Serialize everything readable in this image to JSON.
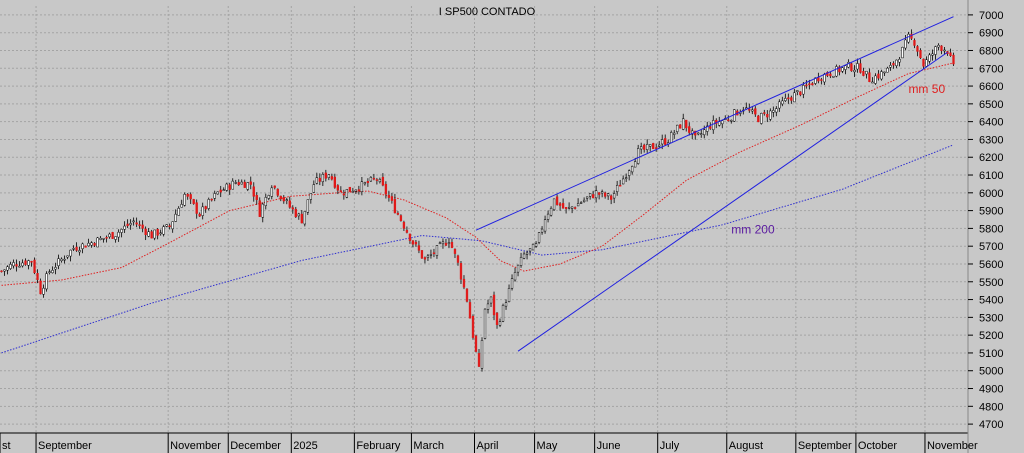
{
  "chart_data": {
    "type": "candlestick",
    "title": "I SP500 CONTADO",
    "xlabel": "",
    "ylabel": "",
    "ylim": [
      4650,
      7050
    ],
    "yticks": [
      4700,
      4800,
      4900,
      5000,
      5100,
      5200,
      5300,
      5400,
      5500,
      5600,
      5700,
      5800,
      5900,
      6000,
      6100,
      6200,
      6300,
      6400,
      6500,
      6600,
      6700,
      6800,
      6900,
      7000
    ],
    "grid": true,
    "legend": "none",
    "months": [
      {
        "label": "st",
        "bar": 0
      },
      {
        "label": "September",
        "bar": 12
      },
      {
        "label": "November",
        "bar": 56
      },
      {
        "label": "December",
        "bar": 76
      },
      {
        "label": "2025",
        "bar": 97
      },
      {
        "label": "February",
        "bar": 118
      },
      {
        "label": "March",
        "bar": 137
      },
      {
        "label": "April",
        "bar": 158
      },
      {
        "label": "May",
        "bar": 178
      },
      {
        "label": "June",
        "bar": 198
      },
      {
        "label": "July",
        "bar": 219
      },
      {
        "label": "August",
        "bar": 242
      },
      {
        "label": "September",
        "bar": 265
      },
      {
        "label": "October",
        "bar": 285
      },
      {
        "label": "November",
        "bar": 308
      }
    ],
    "bars_total": 318,
    "close_anchors": [
      [
        0,
        5560
      ],
      [
        4,
        5600
      ],
      [
        10,
        5620
      ],
      [
        13,
        5450
      ],
      [
        16,
        5560
      ],
      [
        24,
        5690
      ],
      [
        30,
        5720
      ],
      [
        38,
        5770
      ],
      [
        44,
        5840
      ],
      [
        50,
        5760
      ],
      [
        56,
        5810
      ],
      [
        61,
        5990
      ],
      [
        66,
        5880
      ],
      [
        72,
        6000
      ],
      [
        78,
        6060
      ],
      [
        83,
        6050
      ],
      [
        86,
        5890
      ],
      [
        90,
        6050
      ],
      [
        96,
        5920
      ],
      [
        100,
        5850
      ],
      [
        104,
        6050
      ],
      [
        109,
        6110
      ],
      [
        113,
        6000
      ],
      [
        120,
        6040
      ],
      [
        125,
        6080
      ],
      [
        128,
        6000
      ],
      [
        133,
        5850
      ],
      [
        137,
        5720
      ],
      [
        141,
        5620
      ],
      [
        145,
        5680
      ],
      [
        149,
        5740
      ],
      [
        152,
        5600
      ],
      [
        155,
        5400
      ],
      [
        157,
        5200
      ],
      [
        159,
        5000
      ],
      [
        161,
        5350
      ],
      [
        163,
        5400
      ],
      [
        165,
        5250
      ],
      [
        168,
        5400
      ],
      [
        171,
        5550
      ],
      [
        174,
        5650
      ],
      [
        178,
        5700
      ],
      [
        181,
        5860
      ],
      [
        184,
        5960
      ],
      [
        188,
        5900
      ],
      [
        193,
        5950
      ],
      [
        198,
        6000
      ],
      [
        203,
        5970
      ],
      [
        207,
        6080
      ],
      [
        212,
        6230
      ],
      [
        217,
        6260
      ],
      [
        222,
        6300
      ],
      [
        227,
        6400
      ],
      [
        231,
        6300
      ],
      [
        236,
        6380
      ],
      [
        242,
        6420
      ],
      [
        247,
        6480
      ],
      [
        252,
        6420
      ],
      [
        257,
        6460
      ],
      [
        262,
        6530
      ],
      [
        267,
        6580
      ],
      [
        272,
        6650
      ],
      [
        277,
        6680
      ],
      [
        282,
        6710
      ],
      [
        286,
        6700
      ],
      [
        289,
        6640
      ],
      [
        292,
        6660
      ],
      [
        296,
        6700
      ],
      [
        300,
        6800
      ],
      [
        302,
        6870
      ],
      [
        304,
        6850
      ],
      [
        307,
        6720
      ],
      [
        309,
        6760
      ],
      [
        312,
        6830
      ],
      [
        315,
        6800
      ],
      [
        317,
        6700
      ]
    ],
    "ma50_anchors": [
      [
        0,
        5480
      ],
      [
        20,
        5510
      ],
      [
        40,
        5580
      ],
      [
        56,
        5720
      ],
      [
        76,
        5900
      ],
      [
        96,
        5980
      ],
      [
        112,
        6000
      ],
      [
        122,
        6010
      ],
      [
        134,
        5960
      ],
      [
        148,
        5860
      ],
      [
        158,
        5750
      ],
      [
        166,
        5620
      ],
      [
        174,
        5560
      ],
      [
        186,
        5600
      ],
      [
        200,
        5700
      ],
      [
        214,
        5880
      ],
      [
        228,
        6070
      ],
      [
        246,
        6230
      ],
      [
        266,
        6380
      ],
      [
        284,
        6530
      ],
      [
        302,
        6670
      ],
      [
        317,
        6730
      ]
    ],
    "ma200_anchors": [
      [
        0,
        5100
      ],
      [
        50,
        5380
      ],
      [
        100,
        5620
      ],
      [
        140,
        5760
      ],
      [
        160,
        5730
      ],
      [
        180,
        5650
      ],
      [
        200,
        5680
      ],
      [
        240,
        5820
      ],
      [
        280,
        6020
      ],
      [
        317,
        6270
      ]
    ],
    "trendlines": [
      {
        "from": [
          158,
          5790
        ],
        "to": [
          317,
          6990
        ]
      },
      {
        "from": [
          172,
          5110
        ],
        "to": [
          315,
          6790
        ]
      }
    ],
    "annotations": [
      {
        "text": "mm 50",
        "bar": 302,
        "value": 6560,
        "color": "#e02020"
      },
      {
        "text": "mm 200",
        "bar": 243,
        "value": 5770,
        "color": "#5a1aa0"
      }
    ],
    "colors": {
      "background": "#c8c8c8",
      "grid": "#a4a4a4",
      "up_candle": "#ffffff",
      "down_candle": "#e01818",
      "wick": "#000000",
      "ma50": "#e02020",
      "ma200": "#3030d0",
      "trendline": "#2020e0"
    }
  }
}
